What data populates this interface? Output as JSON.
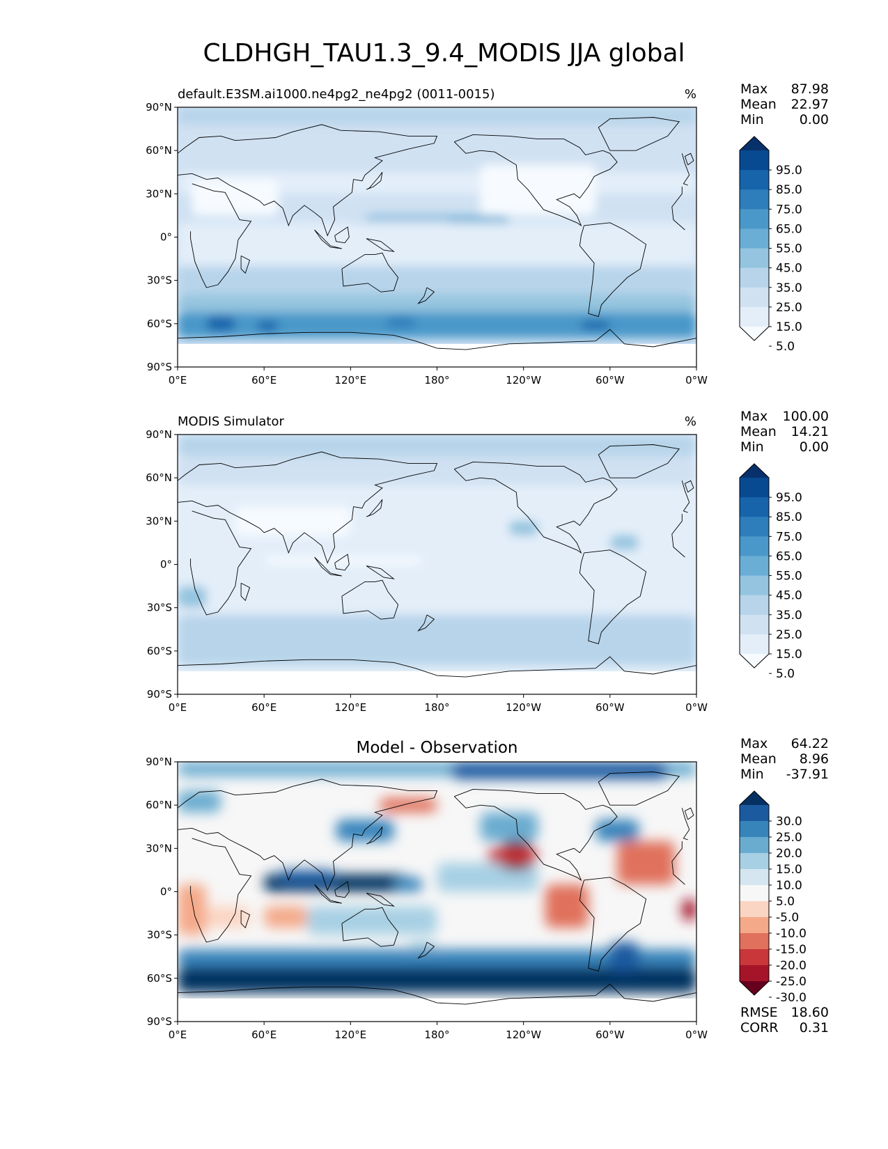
{
  "title": "CLDHGH_TAU1.3_9.4_MODIS JJA global",
  "lat_ticks": [
    "90°N",
    "60°N",
    "30°N",
    "0°",
    "30°S",
    "60°S",
    "90°S"
  ],
  "lon_ticks": [
    "0°E",
    "60°E",
    "120°E",
    "180°",
    "120°W",
    "60°W",
    "0°W"
  ],
  "panels": [
    {
      "name": "test",
      "left_title": "default.E3SM.ai1000.ne4pg2_ne4pg2 (0011-0015)",
      "center_title": "",
      "units": "%",
      "stats": [
        {
          "label": "Max",
          "value": "87.98"
        },
        {
          "label": "Mean",
          "value": "22.97"
        },
        {
          "label": "Min",
          "value": "0.00"
        }
      ],
      "colorbar_labels": [
        "95.0",
        "85.0",
        "75.0",
        "65.0",
        "55.0",
        "45.0",
        "35.0",
        "25.0",
        "15.0",
        "5.0"
      ],
      "colorbar_colors": [
        "#f7fbff",
        "#e3eef9",
        "#d0e1f2",
        "#b7d4ea",
        "#94c4df",
        "#6aaed6",
        "#4a98c9",
        "#2e7ebc",
        "#1764ab",
        "#084a91",
        "#08306b"
      ],
      "extra_stats": []
    },
    {
      "name": "reference",
      "left_title": "MODIS Simulator",
      "center_title": "",
      "units": "%",
      "stats": [
        {
          "label": "Max",
          "value": "100.00"
        },
        {
          "label": "Mean",
          "value": "14.21"
        },
        {
          "label": "Min",
          "value": "0.00"
        }
      ],
      "colorbar_labels": [
        "95.0",
        "85.0",
        "75.0",
        "65.0",
        "55.0",
        "45.0",
        "35.0",
        "25.0",
        "15.0",
        "5.0"
      ],
      "colorbar_colors": [
        "#f7fbff",
        "#e3eef9",
        "#d0e1f2",
        "#b7d4ea",
        "#94c4df",
        "#6aaed6",
        "#4a98c9",
        "#2e7ebc",
        "#1764ab",
        "#084a91",
        "#08306b"
      ],
      "extra_stats": []
    },
    {
      "name": "difference",
      "left_title": "",
      "center_title": "Model - Observation",
      "units": "",
      "stats": [
        {
          "label": "Max",
          "value": "64.22"
        },
        {
          "label": "Mean",
          "value": "8.96"
        },
        {
          "label": "Min",
          "value": "-37.91"
        }
      ],
      "colorbar_labels": [
        "30.0",
        "25.0",
        "20.0",
        "15.0",
        "10.0",
        "5.0",
        "-5.0",
        "-10.0",
        "-15.0",
        "-20.0",
        "-25.0",
        "-30.0"
      ],
      "colorbar_colors": [
        "#67001f",
        "#a51429",
        "#c9373a",
        "#e0715c",
        "#f4a989",
        "#fbd5c3",
        "#f7f7f7",
        "#d5e6f1",
        "#a7d0e4",
        "#6aacd0",
        "#3784bb",
        "#1c5aa0",
        "#053061"
      ],
      "extra_stats": [
        {
          "label": "RMSE",
          "value": "18.60"
        },
        {
          "label": "CORR",
          "value": "0.31"
        }
      ]
    }
  ]
}
